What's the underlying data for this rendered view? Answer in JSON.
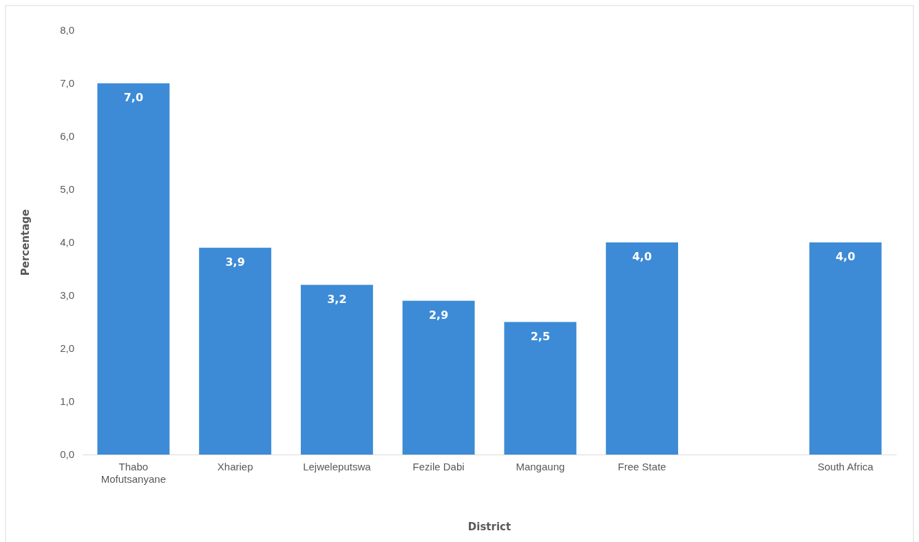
{
  "chart_data": {
    "type": "bar",
    "xlabel": "District",
    "ylabel": "Percentage",
    "categories": [
      "Thabo Mofutsanyane",
      "Xhariep",
      "Lejweleputswa",
      "Fezile Dabi",
      "Mangaung",
      "Free State",
      null,
      "South Africa"
    ],
    "values": [
      7.0,
      3.9,
      3.2,
      2.9,
      2.5,
      4.0,
      null,
      4.0
    ],
    "value_labels": [
      "7,0",
      "3,9",
      "3,2",
      "2,9",
      "2,5",
      "4,0",
      null,
      "4,0"
    ],
    "color": "#3d8bd6",
    "ylim": [
      0,
      8
    ],
    "yticks": [
      {
        "value": 0,
        "label": "0,0"
      },
      {
        "value": 1,
        "label": "1,0"
      },
      {
        "value": 2,
        "label": "2,0"
      },
      {
        "value": 3,
        "label": "3,0"
      },
      {
        "value": 4,
        "label": "4,0"
      },
      {
        "value": 5,
        "label": "5,0"
      },
      {
        "value": 6,
        "label": "6,0"
      },
      {
        "value": 7,
        "label": "7,0"
      },
      {
        "value": 8,
        "label": "8,0"
      }
    ],
    "grid": false
  }
}
